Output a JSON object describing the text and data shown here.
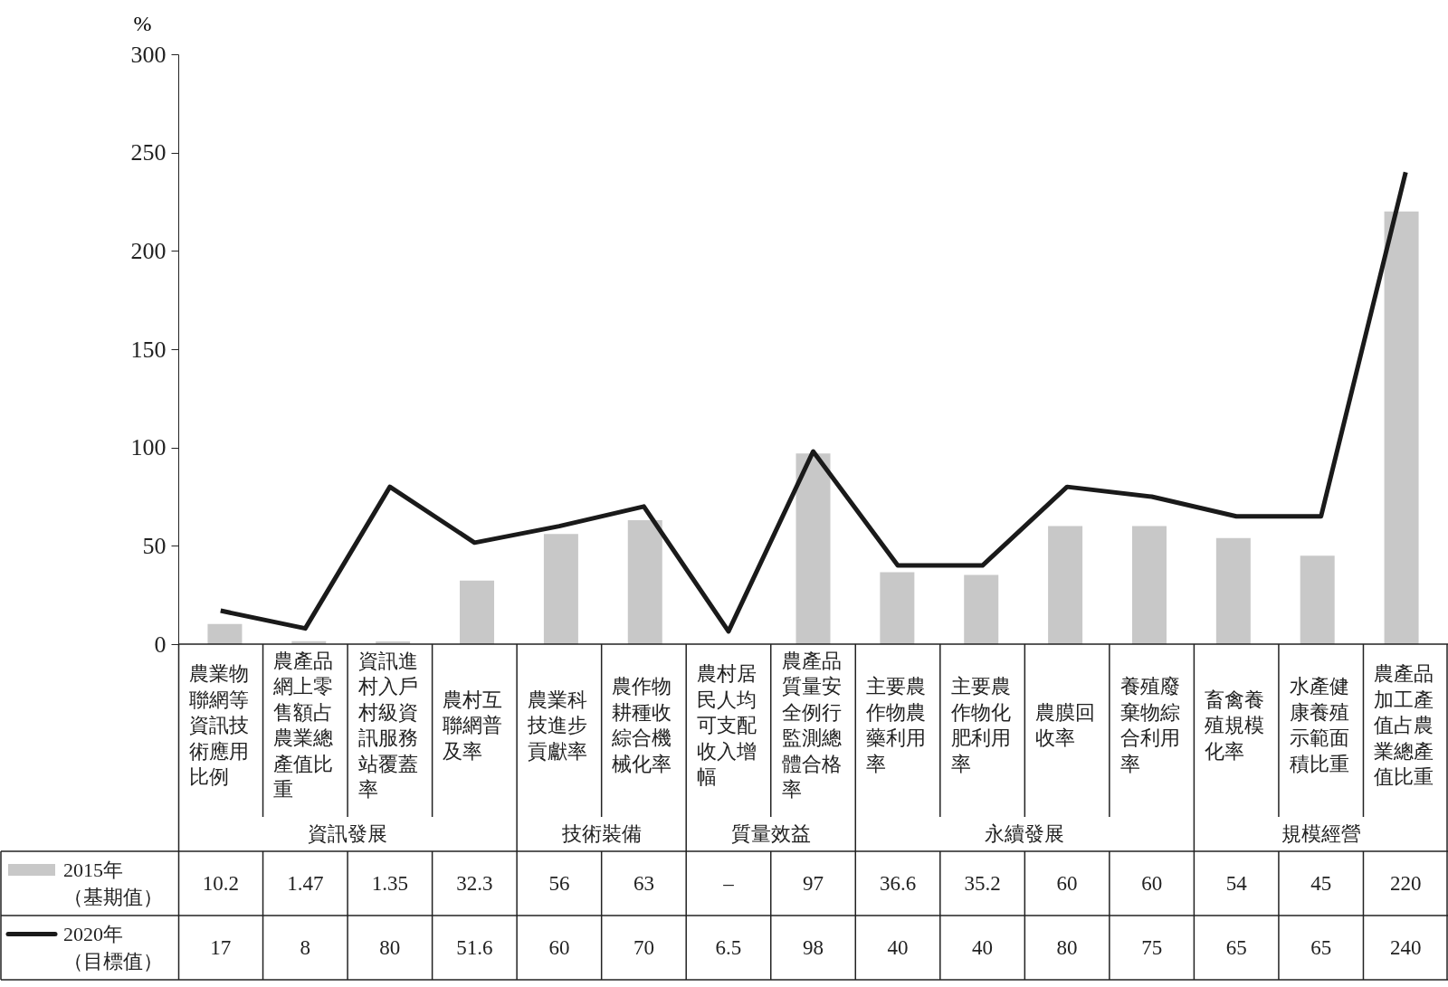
{
  "chart_data": {
    "type": "bar",
    "ylabel": "%",
    "categories": [
      "農業物聯網等資訊技術應用比例",
      "農產品網上零售額占農業總產值比重",
      "資訊進村入戶村級資訊服務站覆蓋率",
      "農村互聯網普及率",
      "農業科技進步貢獻率",
      "農作物耕種收綜合機械化率",
      "農村居民人均可支配收入增幅",
      "農產品質量安全例行監測總體合格率",
      "主要農作物農藥利用率",
      "主要農作物化肥利用率",
      "農膜回收率",
      "養殖廢棄物綜合利用率",
      "畜禽養殖規模化率",
      "水產健康養殖示範面積比重",
      "農產品加工產值占農業總產值比重"
    ],
    "series": [
      {
        "name": "2015年（基期值）",
        "color": "#c8c8c8",
        "values": [
          10.2,
          1.47,
          1.35,
          32.3,
          56,
          63,
          null,
          97,
          36.6,
          35.2,
          60,
          60,
          54,
          45,
          220
        ],
        "value_labels": [
          "10.2",
          "1.47",
          "1.35",
          "32.3",
          "56",
          "63",
          "–",
          "97",
          "36.6",
          "35.2",
          "60",
          "60",
          "54",
          "45",
          "220"
        ]
      },
      {
        "name": "2020年（目標值）",
        "type": "line",
        "color": "#1a1a1a",
        "values": [
          17,
          8,
          80,
          51.6,
          60,
          70,
          6.5,
          98,
          40,
          40,
          80,
          75,
          65,
          65,
          240
        ],
        "value_labels": [
          "17",
          "8",
          "80",
          "51.6",
          "60",
          "70",
          "6.5",
          "98",
          "40",
          "40",
          "80",
          "75",
          "65",
          "65",
          "240"
        ]
      }
    ],
    "annotations": [
      "資訊發展",
      "技術裝備",
      "質量效益",
      "永續發展",
      "規模經營"
    ],
    "ylim": [
      0,
      300
    ],
    "yticks": [
      0,
      50,
      100,
      150,
      200,
      250,
      300
    ],
    "grid": false,
    "legend": "bottom left",
    "marker": "none",
    "line_style": "solid"
  }
}
